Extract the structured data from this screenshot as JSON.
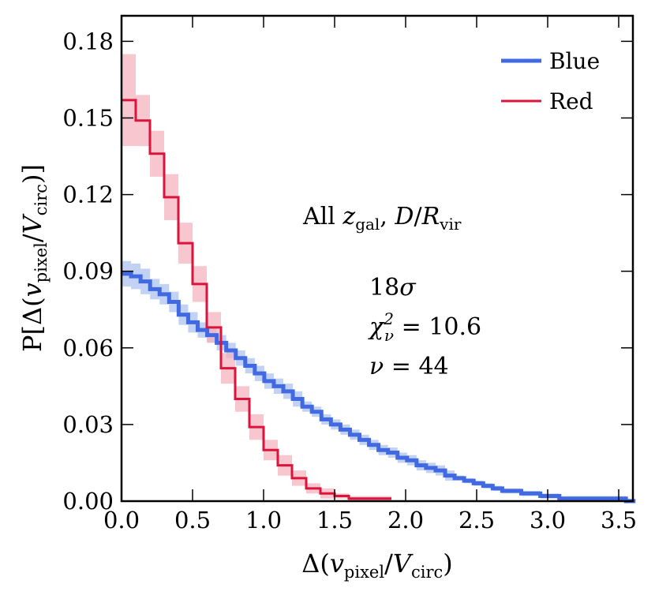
{
  "chart_data": {
    "type": "line",
    "style": "step",
    "title": "",
    "xlabel": "Δ(v_pixel/V_circ)",
    "xlabel_parts": {
      "pre": "Δ(",
      "v": "v",
      "sub1": "pixel",
      "mid": "/",
      "V": "V",
      "sub2": "circ",
      "post": ")"
    },
    "ylabel": "P[Δ(v_pixel/V_circ)]",
    "ylabel_parts": {
      "pre": "P[Δ(",
      "v": "v",
      "sub1": "pixel",
      "mid": "/",
      "V": "V",
      "sub2": "circ",
      "post": ")]"
    },
    "xlim": [
      0.0,
      3.6
    ],
    "ylim": [
      0.0,
      0.19
    ],
    "xticks": [
      0.0,
      0.5,
      1.0,
      1.5,
      2.0,
      2.5,
      3.0,
      3.5
    ],
    "xtick_labels": [
      "0.0",
      "0.5",
      "1.0",
      "1.5",
      "2.0",
      "2.5",
      "3.0",
      "3.5"
    ],
    "yticks": [
      0.0,
      0.03,
      0.06,
      0.09,
      0.12,
      0.15,
      0.18
    ],
    "ytick_labels": [
      "0.00",
      "0.03",
      "0.06",
      "0.09",
      "0.12",
      "0.15",
      "0.18"
    ],
    "legend_position": "top-right",
    "series": [
      {
        "name": "Blue",
        "color": "#4169e1",
        "band_color": "#aec3f0",
        "bin_width": 0.067,
        "x_start": 0.0,
        "values": [
          0.089,
          0.088,
          0.086,
          0.083,
          0.081,
          0.078,
          0.073,
          0.07,
          0.067,
          0.065,
          0.062,
          0.059,
          0.056,
          0.053,
          0.05,
          0.047,
          0.045,
          0.043,
          0.04,
          0.037,
          0.035,
          0.032,
          0.03,
          0.028,
          0.026,
          0.024,
          0.022,
          0.02,
          0.019,
          0.017,
          0.016,
          0.014,
          0.013,
          0.012,
          0.01,
          0.009,
          0.008,
          0.007,
          0.006,
          0.005,
          0.004,
          0.004,
          0.003,
          0.003,
          0.002,
          0.002,
          0.001,
          0.001,
          0.001,
          0.001,
          0.001,
          0.001,
          0.001,
          0.0
        ],
        "errors": [
          0.005,
          0.005,
          0.005,
          0.004,
          0.004,
          0.004,
          0.004,
          0.004,
          0.003,
          0.003,
          0.003,
          0.003,
          0.003,
          0.003,
          0.003,
          0.003,
          0.003,
          0.003,
          0.003,
          0.002,
          0.002,
          0.002,
          0.002,
          0.002,
          0.002,
          0.002,
          0.002,
          0.002,
          0.002,
          0.002,
          0.002,
          0.002,
          0.002,
          0.002,
          0.002,
          0.001,
          0.001,
          0.001,
          0.001,
          0.001,
          0.001,
          0.001,
          0.001,
          0.001,
          0.001,
          0.001,
          0.001,
          0.001,
          0.001,
          0.001,
          0.001,
          0.001,
          0.001,
          0.001
        ]
      },
      {
        "name": "Red",
        "color": "#dc143c",
        "band_color": "#f4b3bf",
        "bin_width": 0.1,
        "x_start": 0.0,
        "values": [
          0.157,
          0.149,
          0.136,
          0.119,
          0.101,
          0.085,
          0.068,
          0.052,
          0.04,
          0.029,
          0.02,
          0.014,
          0.009,
          0.005,
          0.003,
          0.002,
          0.001,
          0.001,
          0.001
        ],
        "errors": [
          0.018,
          0.01,
          0.009,
          0.009,
          0.008,
          0.007,
          0.006,
          0.006,
          0.005,
          0.005,
          0.004,
          0.004,
          0.003,
          0.002,
          0.002,
          0.001,
          0.001,
          0.001,
          0.001
        ]
      }
    ],
    "annotations": {
      "line1": {
        "pre": "All ",
        "z": "z",
        "zsub": "gal",
        "sep": ", ",
        "D": "D",
        "slash": "/",
        "R": "R",
        "Rsub": "vir"
      },
      "sigma": {
        "value": "18",
        "symbol": "σ"
      },
      "chi2": {
        "symbol": "χ",
        "sub": "ν",
        "sup": "2",
        "eq": " = ",
        "value": "10.6"
      },
      "nu": {
        "symbol": "ν",
        "eq": " = ",
        "value": "44"
      }
    }
  }
}
